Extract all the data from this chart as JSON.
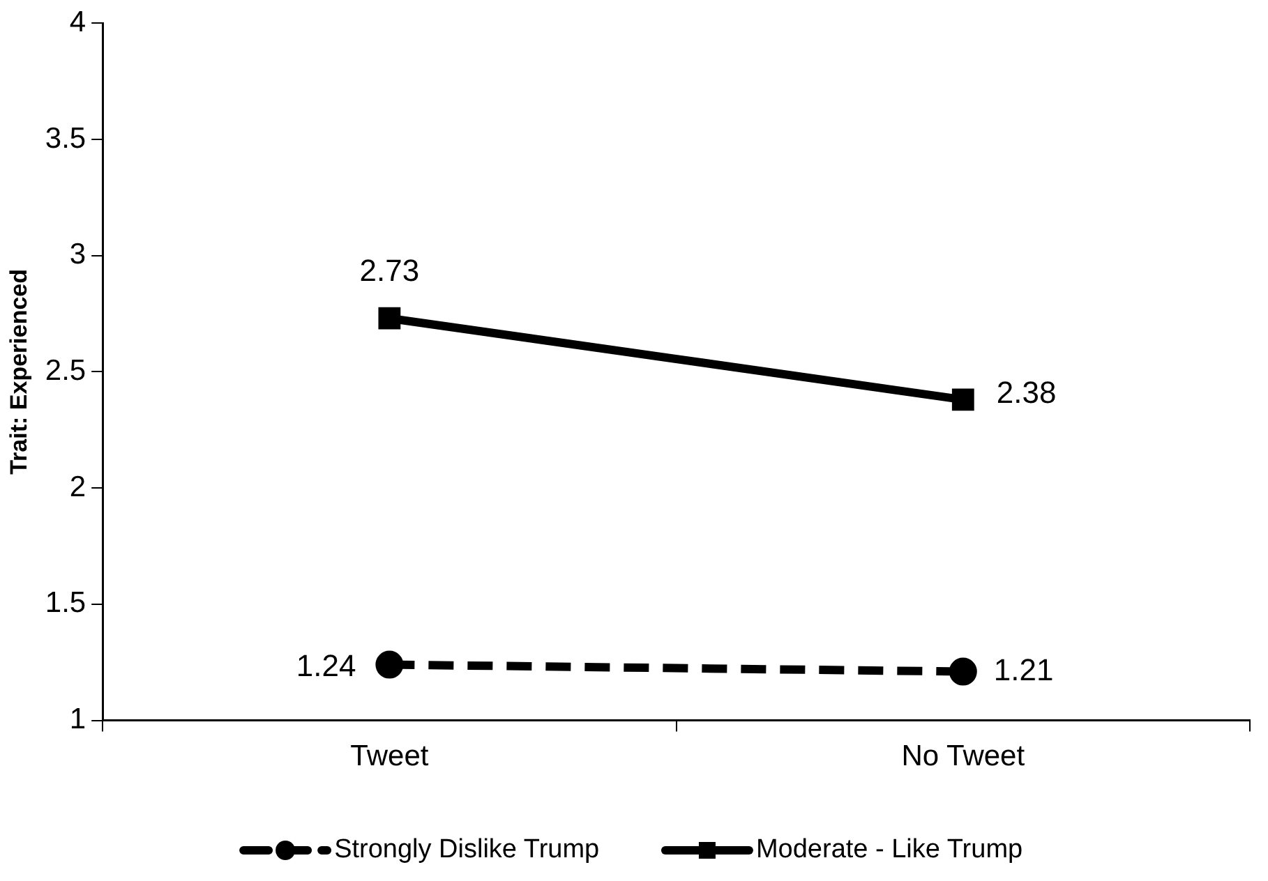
{
  "chart_data": {
    "type": "line",
    "ylabel": "Trait: Experienced",
    "categories": [
      "Tweet",
      "No Tweet"
    ],
    "series": [
      {
        "name": "Strongly Dislike Trump",
        "color": "#000000",
        "values": [
          1.24,
          1.21
        ],
        "marker": "circle",
        "line_style": "dashed"
      },
      {
        "name": "Moderate - Like Trump",
        "color": "#000000",
        "values": [
          2.73,
          2.38
        ],
        "marker": "square",
        "line_style": "solid"
      }
    ],
    "ylim": [
      1,
      4
    ],
    "yticks": [
      1,
      1.5,
      2,
      2.5,
      3,
      3.5,
      4
    ],
    "grid": false,
    "legend": "bottom",
    "data_labels": true
  }
}
